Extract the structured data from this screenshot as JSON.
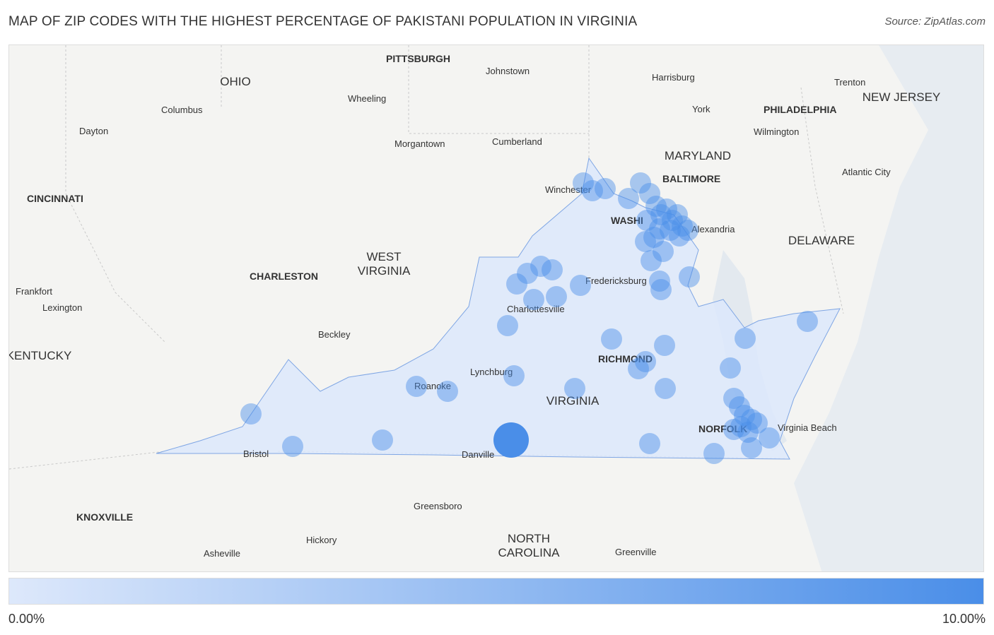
{
  "title": "MAP OF ZIP CODES WITH THE HIGHEST PERCENTAGE OF PAKISTANI POPULATION IN VIRGINIA",
  "source": "Source: ZipAtlas.com",
  "legend": {
    "min_label": "0.00%",
    "max_label": "10.00%",
    "color_low": "#dde8fb",
    "color_high": "#4a8ee8"
  },
  "colors": {
    "map_background": "#f4f4f2",
    "state_fill": "#dce8fb",
    "state_stroke": "#7fa6e4",
    "bubble": "#4a8ee8"
  },
  "map_labels": {
    "states": {
      "ohio": "OHIO",
      "west_virginia_1": "WEST",
      "west_virginia_2": "VIRGINIA",
      "maryland": "MARYLAND",
      "new_jersey": "NEW JERSEY",
      "delaware": "DELAWARE",
      "virginia": "VIRGINIA",
      "kentucky": "KENTUCKY",
      "north_carolina_1": "NORTH",
      "north_carolina_2": "CAROLINA"
    },
    "cities": {
      "pittsburgh": "PITTSBURGH",
      "johnstown": "Johnstown",
      "harrisburg": "Harrisburg",
      "trenton": "Trenton",
      "columbus": "Columbus",
      "wheeling": "Wheeling",
      "york": "York",
      "philadelphia": "PHILADELPHIA",
      "dayton": "Dayton",
      "wilmington": "Wilmington",
      "morgantown": "Morgantown",
      "cumberland": "Cumberland",
      "baltimore": "BALTIMORE",
      "atlantic_city": "Atlantic City",
      "winchester": "Winchester",
      "cincinnati": "CINCINNATI",
      "washington": "WASHI",
      "alexandria": "Alexandria",
      "charleston": "CHARLESTON",
      "frankfort": "Frankfort",
      "fredericksburg": "Fredericksburg",
      "lexington": "Lexington",
      "charlottesville": "Charlottesville",
      "beckley": "Beckley",
      "richmond": "RICHMOND",
      "lynchburg": "Lynchburg",
      "roanoke": "Roanoke",
      "norfolk": "NORFOLK",
      "virginia_beach": "Virginia Beach",
      "bristol": "Bristol",
      "danville": "Danville",
      "greensboro": "Greensboro",
      "knoxville": "KNOXVILLE",
      "hickory": "Hickory",
      "asheville": "Asheville",
      "greenville": "Greenville"
    }
  }
}
